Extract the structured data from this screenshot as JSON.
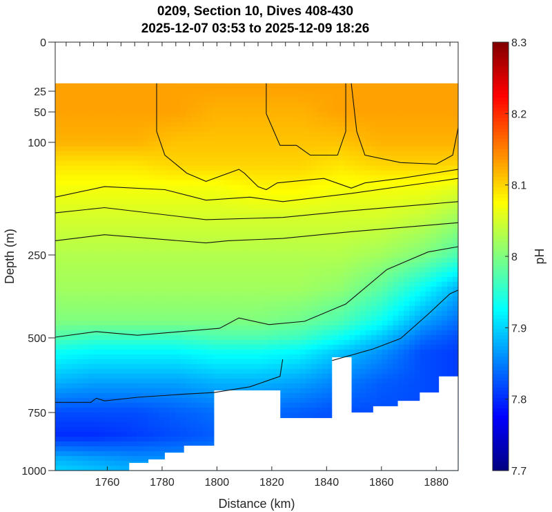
{
  "chart_data": {
    "type": "heatmap",
    "title": [
      "0209, Section 10, Dives 408-430",
      "2025-12-07 03:53 to 2025-12-09 18:26"
    ],
    "xlabel": "Distance (km)",
    "ylabel": "Depth (m)",
    "colorbar_label": "pH",
    "colormap": "jet",
    "xlim": [
      1741,
      1888
    ],
    "ylim": [
      0,
      1000
    ],
    "y_reversed": true,
    "x_ticks": [
      1760,
      1780,
      1800,
      1820,
      1840,
      1860,
      1880
    ],
    "y_ticks": [
      0,
      25,
      50,
      100,
      250,
      500,
      750,
      1000
    ],
    "clim": [
      7.7,
      8.3
    ],
    "c_ticks": [
      7.7,
      7.8,
      7.9,
      8.0,
      8.1,
      8.2,
      8.3
    ],
    "top_data_depth": 21,
    "grid_distances": [
      1741,
      1755,
      1770,
      1785,
      1800,
      1815,
      1830,
      1845,
      1860,
      1875,
      1888
    ],
    "grid_depths": [
      21,
      50,
      100,
      130,
      160,
      200,
      250,
      350,
      450,
      500,
      550,
      650,
      750,
      850,
      950,
      1000
    ],
    "ph": [
      [
        8.13,
        8.13,
        8.12,
        8.09,
        8.07,
        8.05,
        8.03,
        8.02,
        8.0,
        7.97,
        7.93,
        7.88,
        7.82,
        7.8,
        7.88,
        7.9
      ],
      [
        8.13,
        8.13,
        8.12,
        8.09,
        8.07,
        8.05,
        8.03,
        8.02,
        8.0,
        7.96,
        7.92,
        7.87,
        7.82,
        7.8,
        7.87,
        7.89
      ],
      [
        8.13,
        8.13,
        8.12,
        8.09,
        8.07,
        8.05,
        8.03,
        8.02,
        8.0,
        7.96,
        7.92,
        7.87,
        7.82,
        7.81,
        7.86,
        7.88
      ],
      [
        8.13,
        8.13,
        8.11,
        8.1,
        8.07,
        8.05,
        8.03,
        8.02,
        8.0,
        7.96,
        7.92,
        7.87,
        7.83,
        7.82,
        7.86,
        7.88
      ],
      [
        8.13,
        8.12,
        8.11,
        8.1,
        8.07,
        8.05,
        8.03,
        8.02,
        8.0,
        7.97,
        7.93,
        7.88,
        7.84,
        7.83,
        7.86,
        7.88
      ],
      [
        8.13,
        8.12,
        8.11,
        8.1,
        8.08,
        8.05,
        8.03,
        8.02,
        8.0,
        7.97,
        7.93,
        7.88,
        7.84,
        7.83,
        7.86,
        7.88
      ],
      [
        8.13,
        8.12,
        8.11,
        8.1,
        8.08,
        8.05,
        8.03,
        8.02,
        7.99,
        7.96,
        7.92,
        7.87,
        7.83,
        7.83,
        7.86,
        7.88
      ],
      [
        8.13,
        8.13,
        8.11,
        8.09,
        8.07,
        8.05,
        8.03,
        8.01,
        7.97,
        7.93,
        7.89,
        7.85,
        7.82,
        7.82,
        7.85,
        7.87
      ],
      [
        8.13,
        8.13,
        8.12,
        8.1,
        8.07,
        8.05,
        8.02,
        7.98,
        7.93,
        7.89,
        7.86,
        7.83,
        7.82,
        7.82,
        7.85,
        7.87
      ],
      [
        8.13,
        8.13,
        8.12,
        8.1,
        8.07,
        8.04,
        8.0,
        7.93,
        7.87,
        7.84,
        7.82,
        7.82,
        7.82,
        7.82,
        7.85,
        7.87
      ],
      [
        8.13,
        8.13,
        8.12,
        8.1,
        8.06,
        8.02,
        7.97,
        7.88,
        7.84,
        7.82,
        7.81,
        7.81,
        7.81,
        7.82,
        7.85,
        7.87
      ]
    ],
    "bottom_profile": [
      [
        1741,
        1000
      ],
      [
        1762,
        1000
      ],
      [
        1768,
        967
      ],
      [
        1775,
        952
      ],
      [
        1781,
        923
      ],
      [
        1788,
        893
      ],
      [
        1799,
        676
      ],
      [
        1823,
        774
      ],
      [
        1842,
        565
      ],
      [
        1849,
        750
      ],
      [
        1857,
        729
      ],
      [
        1866,
        711
      ],
      [
        1874,
        683
      ],
      [
        1881,
        629
      ],
      [
        1888,
        572
      ]
    ],
    "contours": [
      [
        [
          1778,
          21
        ],
        [
          1778,
          82
        ],
        [
          1781,
          117
        ],
        [
          1789,
          141
        ],
        [
          1796,
          152
        ],
        [
          1808,
          136
        ],
        [
          1810,
          141
        ],
        [
          1815,
          159
        ],
        [
          1818,
          163
        ],
        [
          1822,
          154
        ],
        [
          1839,
          148
        ],
        [
          1849,
          161
        ],
        [
          1854,
          154
        ],
        [
          1867,
          148
        ],
        [
          1888,
          136
        ]
      ],
      [
        [
          1818,
          21
        ],
        [
          1818,
          53
        ],
        [
          1823,
          104
        ],
        [
          1829,
          104
        ],
        [
          1834,
          117
        ],
        [
          1844,
          117
        ],
        [
          1847,
          82
        ],
        [
          1847,
          21
        ]
      ],
      [
        [
          1849,
          21
        ],
        [
          1851,
          82
        ],
        [
          1854,
          117
        ],
        [
          1867,
          127
        ],
        [
          1880,
          129
        ],
        [
          1886,
          117
        ],
        [
          1888,
          76
        ]
      ],
      [
        [
          1741,
          173
        ],
        [
          1759,
          159
        ],
        [
          1781,
          163
        ],
        [
          1796,
          177
        ],
        [
          1812,
          173
        ],
        [
          1824,
          179
        ],
        [
          1849,
          168
        ],
        [
          1888,
          148
        ]
      ],
      [
        [
          1741,
          194
        ],
        [
          1759,
          187
        ],
        [
          1796,
          203
        ],
        [
          1824,
          200
        ],
        [
          1849,
          191
        ],
        [
          1888,
          179
        ]
      ],
      [
        [
          1741,
          231
        ],
        [
          1759,
          223
        ],
        [
          1796,
          234
        ],
        [
          1804,
          231
        ],
        [
          1824,
          228
        ],
        [
          1849,
          219
        ],
        [
          1888,
          207
        ]
      ],
      [
        [
          1741,
          498
        ],
        [
          1756,
          481
        ],
        [
          1771,
          492
        ],
        [
          1801,
          471
        ],
        [
          1808,
          440
        ],
        [
          1819,
          460
        ],
        [
          1832,
          450
        ],
        [
          1847,
          398
        ],
        [
          1862,
          294
        ],
        [
          1877,
          246
        ],
        [
          1888,
          239
        ]
      ],
      [
        [
          1741,
          716
        ],
        [
          1754,
          716
        ],
        [
          1756,
          702
        ],
        [
          1759,
          711
        ],
        [
          1771,
          699
        ],
        [
          1789,
          688
        ],
        [
          1799,
          683
        ],
        [
          1812,
          664
        ],
        [
          1823,
          629
        ],
        [
          1824,
          572
        ]
      ],
      [
        [
          1842,
          576
        ],
        [
          1857,
          537
        ],
        [
          1867,
          502
        ],
        [
          1877,
          429
        ],
        [
          1885,
          367
        ],
        [
          1888,
          356
        ]
      ]
    ]
  }
}
